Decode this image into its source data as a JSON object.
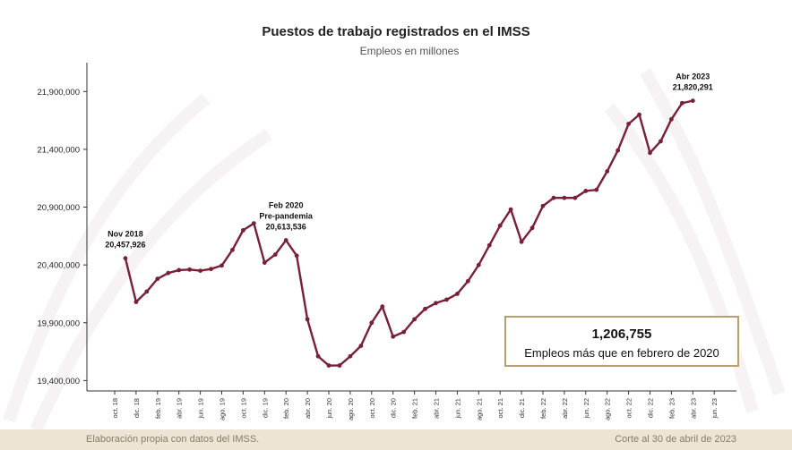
{
  "chart_data": {
    "type": "line",
    "title": "Puestos de trabajo registrados en el IMSS",
    "subtitle": "Empleos en millones",
    "xlabel": "",
    "ylabel": "",
    "y_ticks": [
      "21,900,000",
      "21,400,000",
      "20,900,000",
      "20,400,000",
      "19,900,000",
      "19,400,000"
    ],
    "y_tick_values": [
      21900000,
      21400000,
      20900000,
      20400000,
      19900000,
      19400000
    ],
    "ylim": [
      19310000,
      22150000
    ],
    "x_tick_labels": [
      "oct. 18",
      "dic. 18",
      "feb. 19",
      "abr. 19",
      "jun. 19",
      "ago. 19",
      "oct. 19",
      "dic. 19",
      "feb. 20",
      "abr. 20",
      "jun. 20",
      "ago. 20",
      "oct. 20",
      "dic. 20",
      "feb. 21",
      "abr. 21",
      "jun. 21",
      "ago. 21",
      "oct. 21",
      "dic. 21",
      "feb. 22",
      "abr. 22",
      "jun. 22",
      "ago. 22",
      "oct. 22",
      "dic. 22",
      "feb. 23",
      "abr. 23",
      "jun. 23"
    ],
    "x_start": "oct. 18",
    "x_end": "jun. 23",
    "series": [
      {
        "color": "#7a1f35",
        "x": [
          "nov. 18",
          "dic. 18",
          "ene. 19",
          "feb. 19",
          "mar. 19",
          "abr. 19",
          "may. 19",
          "jun. 19",
          "jul. 19",
          "ago. 19",
          "sep. 19",
          "oct. 19",
          "nov. 19",
          "dic. 19",
          "ene. 20",
          "feb. 20",
          "mar. 20",
          "abr. 20",
          "may. 20",
          "jun. 20",
          "jul. 20",
          "ago. 20",
          "sep. 20",
          "oct. 20",
          "nov. 20",
          "dic. 20",
          "ene. 21",
          "feb. 21",
          "mar. 21",
          "abr. 21",
          "may. 21",
          "jun. 21",
          "jul. 21",
          "ago. 21",
          "sep. 21",
          "oct. 21",
          "nov. 21",
          "dic. 21",
          "ene. 22",
          "feb. 22",
          "mar. 22",
          "abr. 22",
          "may. 22",
          "jun. 22",
          "jul. 22",
          "ago. 22",
          "sep. 22",
          "oct. 22",
          "nov. 22",
          "dic. 22",
          "ene. 23",
          "feb. 23",
          "mar. 23",
          "abr. 23"
        ],
        "values": [
          20457926,
          20080000,
          20170000,
          20280000,
          20330000,
          20355000,
          20360000,
          20350000,
          20365000,
          20395000,
          20530000,
          20700000,
          20760000,
          20420000,
          20490000,
          20613536,
          20480000,
          19930000,
          19610000,
          19530000,
          19530000,
          19610000,
          19700000,
          19900000,
          20040000,
          19780000,
          19820000,
          19930000,
          20020000,
          20070000,
          20100000,
          20150000,
          20260000,
          20400000,
          20570000,
          20740000,
          20880000,
          20600000,
          20720000,
          20910000,
          20980000,
          20980000,
          20980000,
          21040000,
          21050000,
          21210000,
          21390000,
          21620000,
          21700000,
          21370000,
          21470000,
          21660000,
          21800000,
          21820291
        ]
      }
    ],
    "annotations": [
      {
        "x": "nov. 18",
        "lines": [
          "Nov 2018",
          "20,457,926"
        ]
      },
      {
        "x": "feb. 20",
        "lines": [
          "Feb 2020",
          "Pre-pandemia",
          "20,613,536"
        ]
      },
      {
        "x": "abr. 23",
        "lines": [
          "Abr 2023",
          "21,820,291"
        ]
      }
    ],
    "callout": {
      "value": "1,206,755",
      "label": "Empleos más que en febrero de 2020"
    },
    "grid": false,
    "legend": "none"
  },
  "footer": {
    "source": "Elaboración propia con datos del IMSS.",
    "cutoff": "Corte al 30 de abril de 2023"
  },
  "colors": {
    "line": "#7a1f35",
    "callout_border": "#b8a06b",
    "footer_band": "#ece4d4"
  }
}
